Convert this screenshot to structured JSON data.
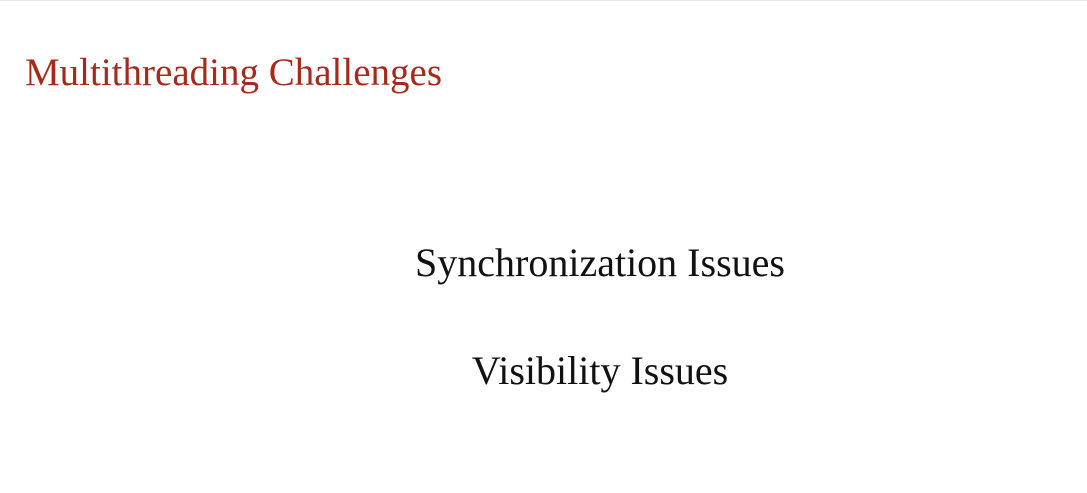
{
  "slide": {
    "title": "Multithreading Challenges",
    "title_color": "#a52a1c",
    "points": [
      "Synchronization Issues",
      "Visibility Issues"
    ]
  }
}
